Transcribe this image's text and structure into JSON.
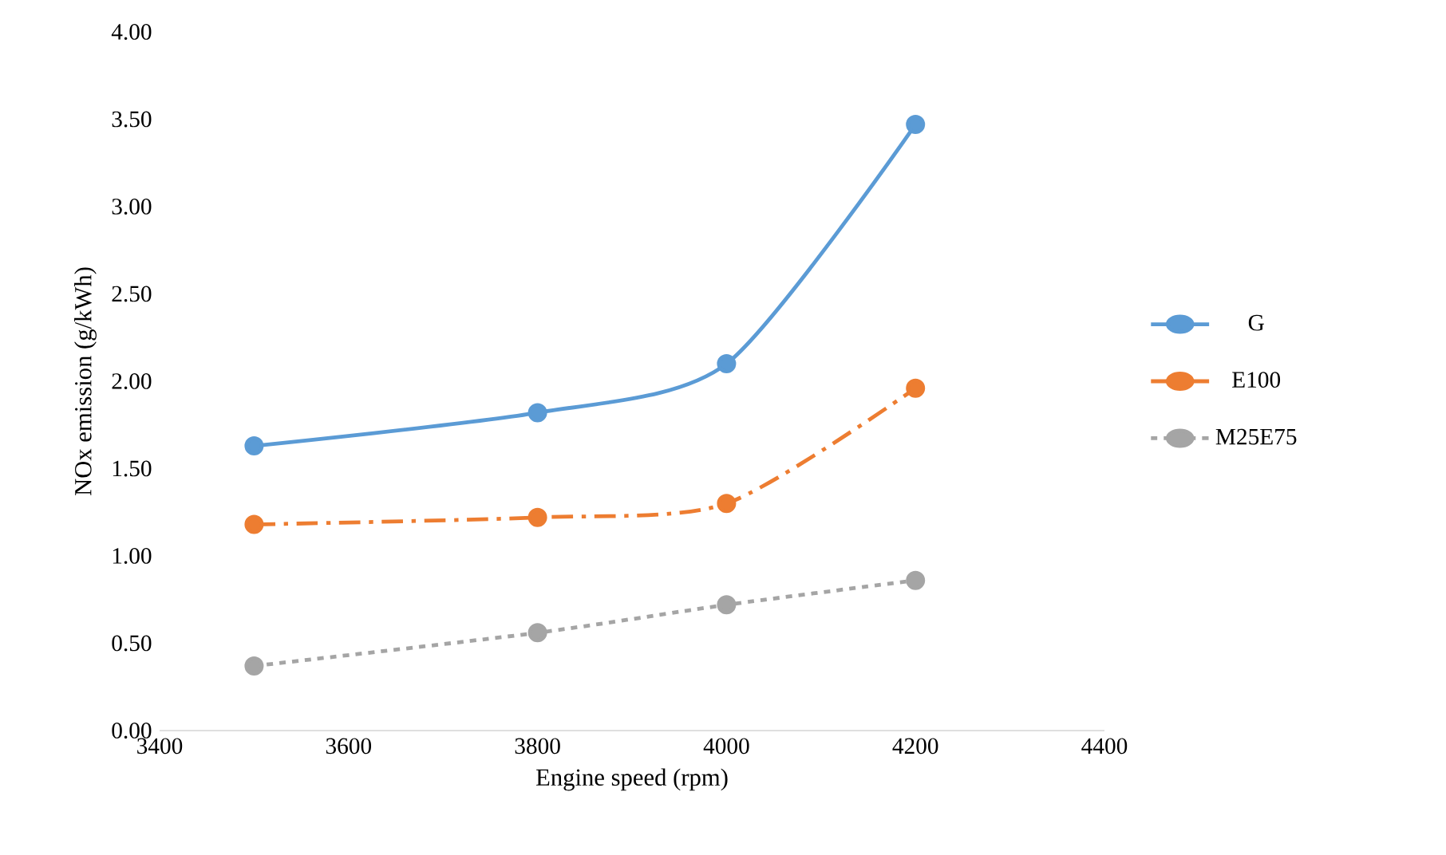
{
  "chart_data": {
    "type": "line",
    "xlabel": "Engine speed (rpm)",
    "ylabel": "NOx emission (g/kWh)",
    "x": [
      3500,
      3800,
      4000,
      4200
    ],
    "series": [
      {
        "name": "G",
        "color": "#5b9bd5",
        "line_style": "solid",
        "values": [
          1.63,
          1.82,
          2.1,
          3.47
        ]
      },
      {
        "name": "E100",
        "color": "#ed7d31",
        "line_style": "dashdot",
        "values": [
          1.18,
          1.22,
          1.3,
          1.96
        ]
      },
      {
        "name": "M25E75",
        "color": "#a5a5a5",
        "line_style": "dashed",
        "values": [
          0.37,
          0.56,
          0.72,
          0.86
        ]
      }
    ],
    "marker": "circle",
    "grid": false,
    "legend": "right",
    "xlim": [
      3400,
      4400
    ],
    "xticks": [
      3400,
      3600,
      3800,
      4000,
      4200,
      4400
    ],
    "ylim": [
      0,
      4
    ],
    "yticks": [
      {
        "value": 0,
        "label": "0.00"
      },
      {
        "value": 0.5,
        "label": "0.50"
      },
      {
        "value": 1,
        "label": "1.00"
      },
      {
        "value": 1.5,
        "label": "1.50"
      },
      {
        "value": 2,
        "label": "2.00"
      },
      {
        "value": 2.5,
        "label": "2.50"
      },
      {
        "value": 3,
        "label": "3.00"
      },
      {
        "value": 3.5,
        "label": "3.50"
      },
      {
        "value": 4,
        "label": "4.00"
      }
    ]
  }
}
